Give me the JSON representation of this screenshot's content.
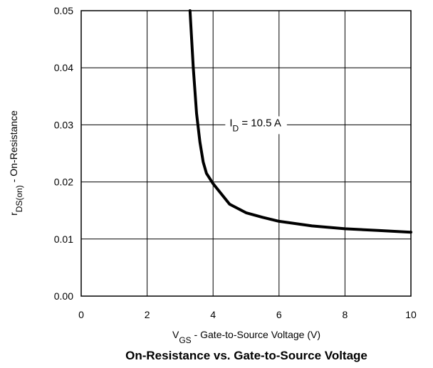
{
  "chart_data": {
    "type": "line",
    "title": "On-Resistance vs. Gate-to-Source Voltage",
    "xlabel": {
      "symbol": "V",
      "subscript": "GS",
      "separator": " - ",
      "text": "Gate-to-Source Voltage (V)"
    },
    "ylabel": {
      "symbol": "r",
      "subscript": "DS(on)",
      "separator": " - ",
      "text": "On-Resistance"
    },
    "xlim": [
      0,
      10
    ],
    "ylim": [
      0,
      0.05
    ],
    "x_ticks": [
      0,
      2,
      4,
      6,
      8,
      10
    ],
    "x_tick_labels": [
      "0",
      "2",
      "4",
      "6",
      "8",
      "10"
    ],
    "y_ticks": [
      0,
      0.01,
      0.02,
      0.03,
      0.04,
      0.05
    ],
    "y_tick_labels": [
      "0.00",
      "0.01",
      "0.02",
      "0.03",
      "0.04",
      "0.05"
    ],
    "grid": true,
    "legend": "none",
    "line_color": "#000000",
    "annotation": {
      "symbol": "I",
      "subscript": "D",
      "text": " = 10.5 A",
      "x": 4.5,
      "y": 0.03
    },
    "series": [
      {
        "x": [
          3.3,
          3.35,
          3.4,
          3.45,
          3.5,
          3.6,
          3.7,
          3.8,
          4.0,
          4.5,
          5.0,
          5.5,
          6.0,
          7.0,
          8.0,
          9.0,
          10.0
        ],
        "y": [
          0.05,
          0.045,
          0.04,
          0.036,
          0.032,
          0.027,
          0.0235,
          0.0215,
          0.0197,
          0.0161,
          0.0146,
          0.0138,
          0.0131,
          0.0123,
          0.0118,
          0.0115,
          0.0112
        ]
      }
    ]
  }
}
